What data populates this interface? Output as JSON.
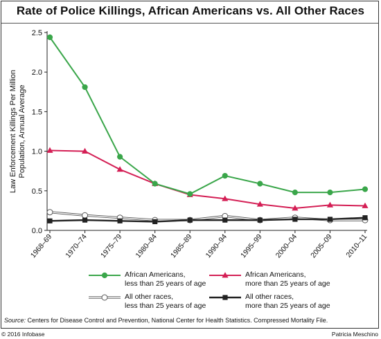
{
  "title": "Rate of Police Killings, African Americans vs. All Other Races",
  "source_label": "Source:",
  "source_text": " Centers for Disease Control and Prevention, National Center for Health Statistics. Compressed Mortality File.",
  "copyright": "© 2016 Infobase",
  "credit": "Patricia Meschino",
  "colors": {
    "green": "#3aa64a",
    "red": "#d41f55",
    "gray": "#9a9a9a",
    "black": "#222222"
  },
  "chart_data": {
    "type": "line",
    "title": "Rate of Police Killings, African Americans vs. All Other Races",
    "ylabel": "Law Enforcement Killings Per Million\nPopulation, Annual Average",
    "xlabel": "",
    "ylim": [
      0,
      2.5
    ],
    "yticks": [
      "0.0",
      "0.5",
      "1.0",
      "1.5",
      "2.0",
      "2.5"
    ],
    "grid": false,
    "legend_position": "bottom",
    "categories": [
      "1968–69",
      "1970–74",
      "1975–79",
      "1980–84",
      "1985–89",
      "1990–94",
      "1995–99",
      "2000–04",
      "2005–09",
      "2010–11"
    ],
    "series": [
      {
        "name": "African Americans,\nless than 25 years of age",
        "color": "#3aa64a",
        "marker": "filled-circle",
        "values": [
          2.44,
          1.81,
          0.93,
          0.59,
          0.46,
          0.69,
          0.59,
          0.48,
          0.48,
          0.52
        ]
      },
      {
        "name": "African Americans,\nmore than 25 years of age",
        "color": "#d41f55",
        "marker": "triangle",
        "values": [
          1.01,
          1.0,
          0.77,
          0.59,
          0.45,
          0.4,
          0.33,
          0.28,
          0.32,
          0.31
        ]
      },
      {
        "name": "All other races,\nless than 25 years of age",
        "color": "#9a9a9a",
        "marker": "hollow-circle",
        "values": [
          0.23,
          0.19,
          0.16,
          0.13,
          0.13,
          0.18,
          0.13,
          0.16,
          0.13,
          0.13
        ]
      },
      {
        "name": "All other races,\nmore than 25 years of age",
        "color": "#222222",
        "marker": "square",
        "values": [
          0.12,
          0.13,
          0.12,
          0.11,
          0.13,
          0.13,
          0.13,
          0.14,
          0.14,
          0.16
        ]
      }
    ]
  }
}
